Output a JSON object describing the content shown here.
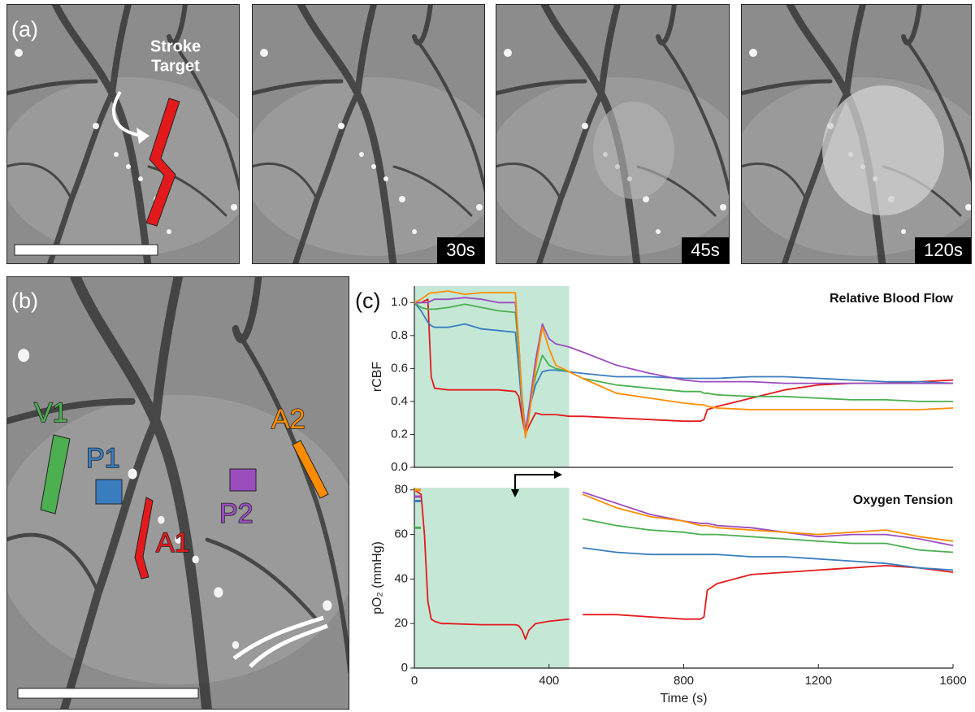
{
  "panel_a": {
    "label": "(a)",
    "annotation": [
      "Stroke",
      "Target"
    ],
    "timestamps": [
      "30s",
      "45s",
      "120s"
    ]
  },
  "panel_b": {
    "label": "(b)",
    "regions": [
      "V1",
      "P1",
      "A1",
      "P2",
      "A2"
    ]
  },
  "panel_c": {
    "label": "(c)"
  },
  "chart_data": [
    {
      "type": "line",
      "title": "Relative Blood Flow",
      "ylabel": "rCBF",
      "xlim": [
        0,
        1600
      ],
      "ylim": [
        0,
        1.1
      ],
      "yticks": [
        {
          "value": 0,
          "label": "0.0"
        },
        0.2,
        0.4,
        0.6,
        0.8,
        {
          "value": 1,
          "label": "1.0"
        }
      ],
      "highlight_x": [
        0,
        460
      ],
      "highlight_color": "#c5e8d6",
      "x": [
        0,
        20,
        40,
        50,
        60,
        100,
        150,
        200,
        250,
        300,
        310,
        320,
        330,
        340,
        360,
        380,
        400,
        420,
        460,
        500,
        600,
        700,
        800,
        850,
        860,
        870,
        900,
        1000,
        1100,
        1200,
        1300,
        1400,
        1500,
        1600
      ],
      "series": [
        {
          "color": "#e31a1c",
          "values": [
            1.0,
            1.0,
            1.02,
            0.55,
            0.48,
            0.47,
            0.47,
            0.47,
            0.47,
            0.46,
            0.43,
            0.3,
            0.2,
            0.25,
            0.33,
            0.32,
            0.32,
            0.32,
            0.31,
            0.31,
            0.3,
            0.29,
            0.28,
            0.28,
            0.29,
            0.35,
            0.37,
            0.42,
            0.47,
            0.5,
            0.51,
            0.51,
            0.52,
            0.53
          ]
        },
        {
          "color": "#3a7dbf",
          "values": [
            1.0,
            0.95,
            0.88,
            0.86,
            0.85,
            0.85,
            0.87,
            0.84,
            0.83,
            0.82,
            0.6,
            0.35,
            0.2,
            0.35,
            0.5,
            0.58,
            0.59,
            0.59,
            0.58,
            0.57,
            0.55,
            0.55,
            0.54,
            0.54,
            0.54,
            0.54,
            0.54,
            0.55,
            0.55,
            0.54,
            0.53,
            0.52,
            0.52,
            0.51
          ]
        },
        {
          "color": "#4caf50",
          "values": [
            1.0,
            0.97,
            0.96,
            0.96,
            0.96,
            0.97,
            0.99,
            0.97,
            0.95,
            0.94,
            0.7,
            0.4,
            0.2,
            0.35,
            0.55,
            0.68,
            0.62,
            0.6,
            0.58,
            0.54,
            0.5,
            0.48,
            0.46,
            0.46,
            0.45,
            0.45,
            0.44,
            0.43,
            0.43,
            0.42,
            0.41,
            0.41,
            0.4,
            0.4
          ]
        },
        {
          "color": "#9b4dbe",
          "values": [
            1.0,
            1.0,
            1.0,
            1.01,
            1.02,
            1.02,
            1.03,
            1.02,
            1.0,
            1.0,
            0.75,
            0.42,
            0.22,
            0.35,
            0.65,
            0.87,
            0.78,
            0.75,
            0.73,
            0.7,
            0.62,
            0.57,
            0.53,
            0.52,
            0.52,
            0.52,
            0.52,
            0.52,
            0.51,
            0.51,
            0.51,
            0.51,
            0.51,
            0.51
          ]
        },
        {
          "color": "#ff8c00",
          "values": [
            1.0,
            1.02,
            1.05,
            1.06,
            1.06,
            1.07,
            1.05,
            1.06,
            1.06,
            1.06,
            0.75,
            0.4,
            0.18,
            0.3,
            0.6,
            0.85,
            0.72,
            0.62,
            0.58,
            0.54,
            0.45,
            0.42,
            0.39,
            0.38,
            0.38,
            0.37,
            0.36,
            0.35,
            0.35,
            0.35,
            0.35,
            0.35,
            0.35,
            0.36
          ]
        }
      ]
    },
    {
      "type": "line",
      "title": "Oxygen Tension",
      "ylabel": "pO₂ (mmHg)",
      "xlabel": "Time (s)",
      "xlim": [
        0,
        1600
      ],
      "ylim": [
        0,
        81
      ],
      "xticks": [
        0,
        400,
        800,
        1200,
        1600
      ],
      "yticks": [
        0,
        20,
        40,
        60,
        80
      ],
      "highlight_x": [
        0,
        460
      ],
      "highlight_color": "#c5e8d6",
      "x": [
        0,
        20,
        30,
        40,
        50,
        60,
        80,
        100,
        200,
        300,
        310,
        320,
        330,
        340,
        360,
        400,
        460,
        480,
        500,
        600,
        700,
        800,
        850,
        860,
        870,
        900,
        1000,
        1100,
        1200,
        1300,
        1400,
        1500,
        1600
      ],
      "series": [
        {
          "color": "#e31a1c",
          "values": [
            80,
            78,
            60,
            30,
            22,
            21,
            20,
            20,
            19.5,
            19.5,
            19,
            17,
            13,
            17,
            20,
            21,
            22,
            null,
            24,
            24,
            23,
            22,
            22,
            23,
            35,
            38,
            42,
            43,
            44,
            45,
            46,
            45,
            43
          ]
        },
        {
          "color": "#3a7dbf",
          "values": [
            75,
            null,
            null,
            null,
            null,
            null,
            null,
            null,
            null,
            null,
            null,
            null,
            null,
            null,
            null,
            null,
            null,
            null,
            54,
            52,
            51,
            51,
            51,
            51,
            51,
            51,
            50,
            50,
            49,
            48,
            47,
            45,
            44
          ]
        },
        {
          "color": "#4caf50",
          "values": [
            63,
            null,
            null,
            null,
            null,
            null,
            null,
            null,
            null,
            null,
            null,
            null,
            null,
            null,
            null,
            null,
            null,
            null,
            67,
            64,
            62,
            61,
            60,
            60,
            60,
            60,
            59,
            58,
            57,
            56,
            56,
            53,
            52
          ]
        },
        {
          "color": "#9b4dbe",
          "values": [
            77,
            null,
            null,
            null,
            null,
            null,
            null,
            null,
            null,
            null,
            null,
            null,
            null,
            null,
            null,
            null,
            null,
            null,
            79,
            74,
            69,
            66,
            65,
            65,
            65,
            64,
            63,
            61,
            59,
            60,
            60,
            58,
            55
          ]
        },
        {
          "color": "#ff8c00",
          "values": [
            80,
            null,
            null,
            null,
            null,
            null,
            null,
            null,
            null,
            null,
            null,
            null,
            null,
            null,
            null,
            null,
            null,
            null,
            78,
            72,
            68,
            66,
            64,
            64,
            64,
            63,
            62,
            61,
            60,
            61,
            62,
            59,
            57
          ]
        }
      ]
    }
  ]
}
